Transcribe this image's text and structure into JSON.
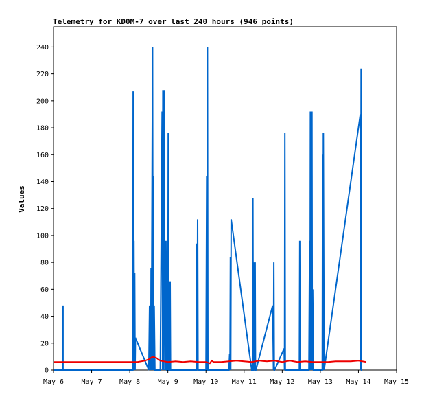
{
  "chart_data": {
    "type": "line",
    "title": "Telemetry for KD0M-7 over last 240 hours (946 points)",
    "xlabel": "",
    "ylabel": "Values",
    "ylim": [
      0,
      255
    ],
    "xlim": [
      6,
      15
    ],
    "yticks": [
      0,
      20,
      40,
      60,
      80,
      100,
      120,
      140,
      160,
      180,
      200,
      220,
      240
    ],
    "xticks": [
      {
        "v": 6,
        "label": "May 6"
      },
      {
        "v": 7,
        "label": "May 7"
      },
      {
        "v": 8,
        "label": "May 8"
      },
      {
        "v": 9,
        "label": "May 9"
      },
      {
        "v": 10,
        "label": "May 10"
      },
      {
        "v": 11,
        "label": "May 11"
      },
      {
        "v": 12,
        "label": "May 12"
      },
      {
        "v": 13,
        "label": "May 13"
      },
      {
        "v": 14,
        "label": "May 14"
      },
      {
        "v": 15,
        "label": "May 15"
      }
    ],
    "grid": false,
    "legend": "none",
    "series": [
      {
        "color": "#0066cc",
        "x": [
          6.0,
          6.25,
          6.25,
          6.25,
          8.08,
          8.09,
          8.1,
          8.11,
          8.12,
          8.13,
          8.14,
          8.15,
          8.5,
          8.52,
          8.55,
          8.56,
          8.57,
          8.58,
          8.6,
          8.61,
          8.62,
          8.63,
          8.64,
          8.66,
          8.66,
          8.8,
          8.85,
          8.86,
          8.87,
          8.88,
          8.9,
          8.92,
          8.93,
          8.94,
          8.95,
          8.97,
          9.0,
          9.01,
          9.02,
          9.05,
          9.06,
          9.07,
          9.08,
          9.1,
          9.72,
          9.75,
          9.76,
          9.77,
          9.78,
          9.79,
          10.0,
          10.02,
          10.03,
          10.04,
          10.05,
          10.06,
          10.6,
          10.62,
          10.63,
          10.64,
          10.65,
          10.66,
          11.2,
          11.22,
          11.23,
          11.24,
          11.25,
          11.27,
          11.28,
          11.29,
          11.3,
          11.31,
          11.75,
          11.77,
          11.78,
          11.79,
          11.8,
          12.05,
          12.06,
          12.07,
          12.08,
          12.45,
          12.46,
          12.47,
          12.48,
          12.7,
          12.72,
          12.73,
          12.74,
          12.75,
          12.76,
          12.77,
          12.78,
          12.79,
          12.8,
          12.82,
          13.05,
          13.06,
          13.07,
          13.08,
          13.1,
          14.05,
          14.06,
          14.07,
          14.08,
          14.1,
          14.1
        ],
        "y": [
          0,
          0,
          48,
          0,
          0,
          207,
          0,
          96,
          0,
          72,
          0,
          24,
          0,
          48,
          0,
          76,
          0,
          89,
          240,
          0,
          144,
          0,
          48,
          0,
          0,
          0,
          192,
          0,
          208,
          0,
          208,
          0,
          32,
          0,
          96,
          0,
          0,
          176,
          0,
          0,
          66,
          0,
          0,
          0,
          0,
          0,
          94,
          0,
          112,
          0,
          0,
          144,
          0,
          240,
          0,
          0,
          0,
          12,
          0,
          84,
          0,
          112,
          0,
          0,
          128,
          0,
          0,
          80,
          0,
          80,
          0,
          0,
          48,
          0,
          80,
          0,
          0,
          16,
          0,
          176,
          0,
          0,
          96,
          0,
          0,
          0,
          96,
          0,
          192,
          0,
          55,
          0,
          192,
          0,
          60,
          0,
          0,
          160,
          0,
          176,
          0,
          190,
          0,
          224,
          0,
          0,
          0
        ]
      },
      {
        "color": "#ee0000",
        "x": [
          6.0,
          7.0,
          8.0,
          8.2,
          8.4,
          8.5,
          8.6,
          8.7,
          8.8,
          9.0,
          9.2,
          9.4,
          9.6,
          9.8,
          10.0,
          10.1,
          10.15,
          10.2,
          10.4,
          10.6,
          10.8,
          11.0,
          11.2,
          11.4,
          11.6,
          11.8,
          12.0,
          12.2,
          12.4,
          12.6,
          12.8,
          13.0,
          13.2,
          13.4,
          13.6,
          13.8,
          14.0,
          14.2
        ],
        "y": [
          6,
          6,
          6,
          6,
          7,
          8,
          10,
          9,
          7,
          6,
          6.5,
          6,
          6.5,
          6,
          6,
          5,
          7,
          6,
          6,
          6.5,
          7,
          6.5,
          6,
          7,
          6.5,
          7,
          6,
          7,
          6,
          6.5,
          6,
          6,
          6,
          6.5,
          6.5,
          6.5,
          7,
          6
        ]
      }
    ]
  }
}
